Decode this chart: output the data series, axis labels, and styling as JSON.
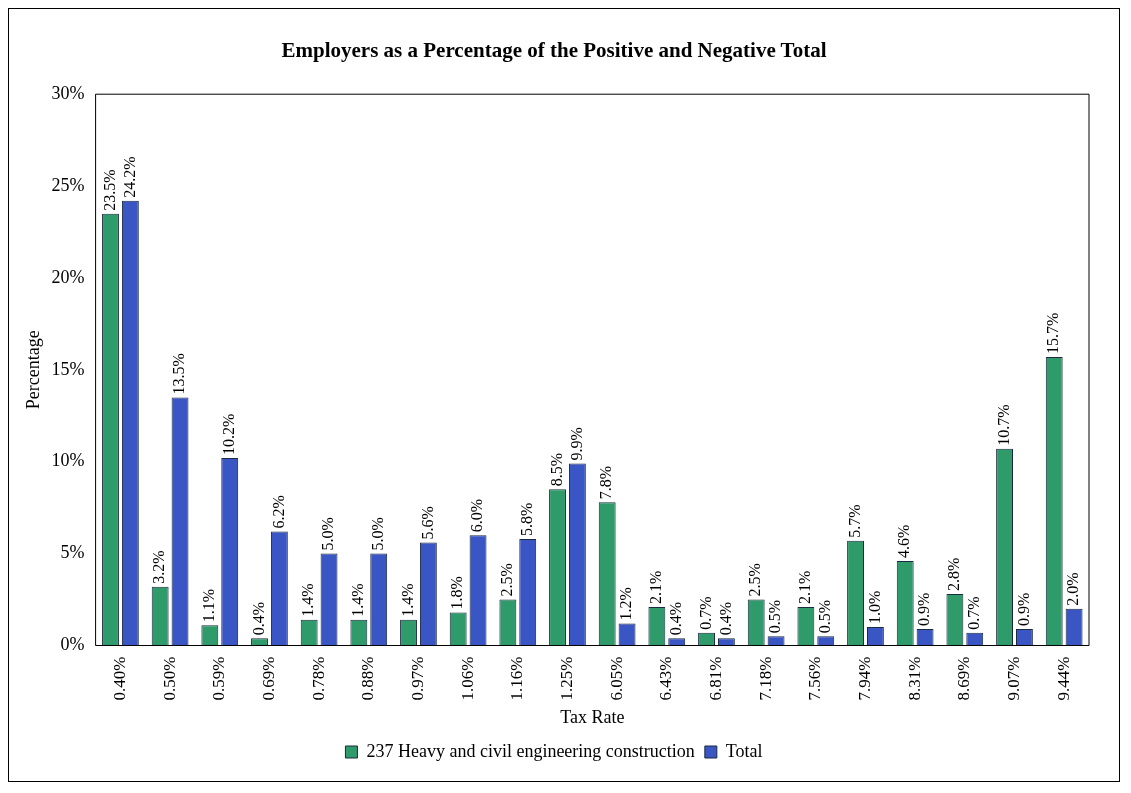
{
  "chart_data": {
    "type": "bar",
    "title": "Employers as a Percentage of the Positive and Negative Total",
    "xlabel": "Tax Rate",
    "ylabel": "Percentage",
    "categories": [
      "0.40%",
      "0.50%",
      "0.59%",
      "0.69%",
      "0.78%",
      "0.88%",
      "0.97%",
      "1.06%",
      "1.16%",
      "1.25%",
      "6.05%",
      "6.43%",
      "6.81%",
      "7.18%",
      "7.56%",
      "7.94%",
      "8.31%",
      "8.69%",
      "9.07%",
      "9.44%"
    ],
    "series": [
      {
        "name": "237 Heavy and civil engineering construction",
        "color": "#2f9a6a",
        "values": [
          23.5,
          3.2,
          1.1,
          0.4,
          1.4,
          1.4,
          1.4,
          1.8,
          2.5,
          8.5,
          7.8,
          2.1,
          0.7,
          2.5,
          2.1,
          5.7,
          4.6,
          2.8,
          10.7,
          15.7
        ],
        "value_labels": [
          "23.5%",
          "3.2%",
          "1.1%",
          "0.4%",
          "1.4%",
          "1.4%",
          "1.4%",
          "1.8%",
          "2.5%",
          "8.5%",
          "7.8%",
          "2.1%",
          "0.7%",
          "2.5%",
          "2.1%",
          "5.7%",
          "4.6%",
          "2.8%",
          "10.7%",
          "15.7%"
        ]
      },
      {
        "name": "Total",
        "color": "#3a55c4",
        "values": [
          24.2,
          13.5,
          10.2,
          6.2,
          5.0,
          5.0,
          5.6,
          6.0,
          5.8,
          9.9,
          1.2,
          0.4,
          0.4,
          0.5,
          0.5,
          1.0,
          0.9,
          0.7,
          0.9,
          2.0
        ],
        "value_labels": [
          "24.2%",
          "13.5%",
          "10.2%",
          "6.2%",
          "5.0%",
          "5.0%",
          "5.6%",
          "6.0%",
          "5.8%",
          "9.9%",
          "1.2%",
          "0.4%",
          "0.4%",
          "0.5%",
          "0.5%",
          "1.0%",
          "0.9%",
          "0.7%",
          "0.9%",
          "2.0%"
        ]
      }
    ],
    "ylim": [
      0,
      30
    ],
    "yticks": [
      {
        "value": 0,
        "label": "0%"
      },
      {
        "value": 5,
        "label": "5%"
      },
      {
        "value": 10,
        "label": "10%"
      },
      {
        "value": 15,
        "label": "15%"
      },
      {
        "value": 20,
        "label": "20%"
      },
      {
        "value": 25,
        "label": "25%"
      },
      {
        "value": 30,
        "label": "30%"
      }
    ],
    "grid": false,
    "legend": "bottom"
  }
}
